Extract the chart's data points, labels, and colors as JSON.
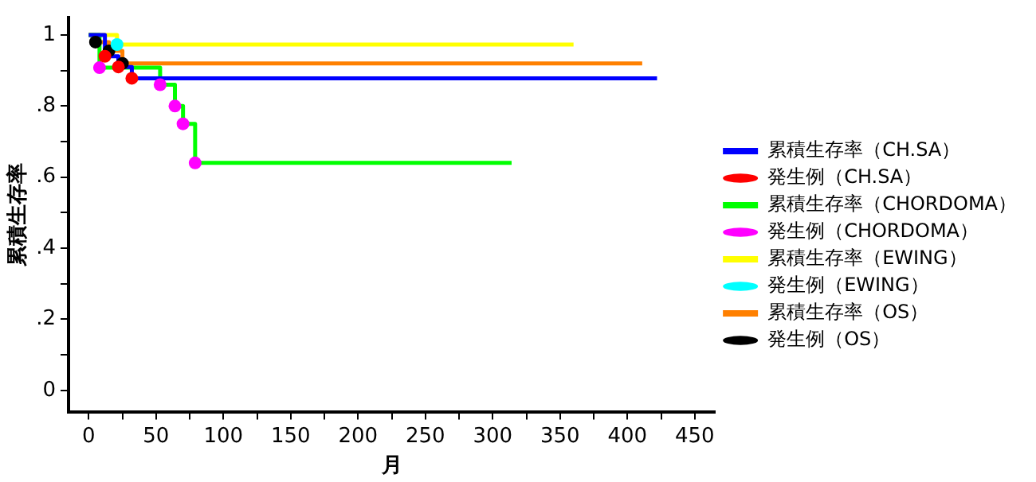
{
  "chart_data": {
    "type": "step",
    "xlabel": "月",
    "ylabel": "累積生存率",
    "xlim": [
      -15,
      465
    ],
    "ylim": [
      -0.06,
      1.05
    ],
    "xticks": [
      0,
      {
        "value": 25,
        "label": null
      },
      50,
      {
        "value": 75,
        "label": null
      },
      100,
      {
        "value": 125,
        "label": null
      },
      150,
      {
        "value": 175,
        "label": null
      },
      200,
      {
        "value": 225,
        "label": null
      },
      250,
      {
        "value": 275,
        "label": null
      },
      300,
      {
        "value": 325,
        "label": null
      },
      350,
      {
        "value": 375,
        "label": null
      },
      400,
      {
        "value": 425,
        "label": null
      },
      450
    ],
    "yticks": [
      0,
      {
        "value": 0.1,
        "label": null
      },
      {
        "value": 0.2,
        "label": ".2"
      },
      {
        "value": 0.3,
        "label": null
      },
      {
        "value": 0.4,
        "label": ".4"
      },
      {
        "value": 0.5,
        "label": null
      },
      {
        "value": 0.6,
        "label": ".6"
      },
      {
        "value": 0.7,
        "label": null
      },
      {
        "value": 0.8,
        "label": ".8"
      },
      {
        "value": 0.9,
        "label": null
      },
      1
    ],
    "grid": false,
    "legend": "right",
    "series": [
      {
        "name": "累積生存率（CH.SA）",
        "color": "#0000ff",
        "x": [
          0,
          12,
          22,
          32,
          422
        ],
        "values": [
          1,
          0.94,
          0.91,
          0.878,
          0.878
        ]
      },
      {
        "name": "発生例（CH.SA）",
        "type": "scatter",
        "marker": "circle",
        "color": "#ff0000",
        "x": [
          12,
          22,
          32
        ],
        "values": [
          0.94,
          0.91,
          0.878
        ]
      },
      {
        "name": "累積生存率（CHORDOMA）",
        "color": "#00ff00",
        "x": [
          0,
          8,
          53,
          64,
          70,
          79,
          314
        ],
        "values": [
          1,
          0.908,
          0.86,
          0.8,
          0.75,
          0.64,
          0.64
        ]
      },
      {
        "name": "発生例（CHORDOMA）",
        "type": "scatter",
        "marker": "circle",
        "color": "#ff00ff",
        "x": [
          8,
          53,
          64,
          70,
          79
        ],
        "values": [
          0.908,
          0.86,
          0.8,
          0.75,
          0.64
        ]
      },
      {
        "name": "累積生存率（EWING）",
        "color": "#ffff00",
        "x": [
          0,
          21,
          360
        ],
        "values": [
          1,
          0.973,
          0.973
        ]
      },
      {
        "name": "発生例（EWING）",
        "type": "scatter",
        "marker": "circle",
        "color": "#00ffff",
        "x": [
          21
        ],
        "values": [
          0.973
        ]
      },
      {
        "name": "累積生存率（OS）",
        "color": "#ff8000",
        "x": [
          0,
          5,
          15,
          25,
          411
        ],
        "values": [
          1,
          0.98,
          0.955,
          0.92,
          0.92
        ]
      },
      {
        "name": "発生例（OS）",
        "type": "scatter",
        "marker": "circle",
        "color": "#000000",
        "x": [
          5,
          15,
          25
        ],
        "values": [
          0.98,
          0.955,
          0.92
        ]
      }
    ]
  }
}
